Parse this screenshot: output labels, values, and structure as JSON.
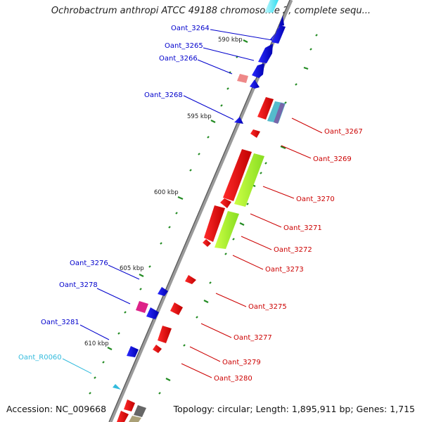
{
  "title": "Ochrobactrum anthropi ATCC 49188 chromosome 2, complete sequ...",
  "footer": {
    "accession": "Accession: NC_009668",
    "summary": "Topology: circular; Length: 1,895,911 bp; Genes: 1,715"
  },
  "scale_labels": [
    "590 kbp",
    "595 kbp",
    "600 kbp",
    "605 kbp",
    "610 kbp"
  ],
  "genes_left": [
    "Oant_3264",
    "Oant_3265",
    "Oant_3266",
    "Oant_3268",
    "Oant_3276",
    "Oant_3278",
    "Oant_3281",
    "Oant_R0060"
  ],
  "genes_right": [
    "Oant_3267",
    "Oant_3269",
    "Oant_3270",
    "Oant_3271",
    "Oant_3272",
    "Oant_3273",
    "Oant_3275",
    "Oant_3277",
    "Oant_3279",
    "Oant_3280"
  ],
  "colors": {
    "forward_gene": "#0000cc",
    "reverse_gene": "#cc0000",
    "rna_gene": "#33bbcc",
    "backbone": "#888888",
    "ticks": "#228b22"
  }
}
